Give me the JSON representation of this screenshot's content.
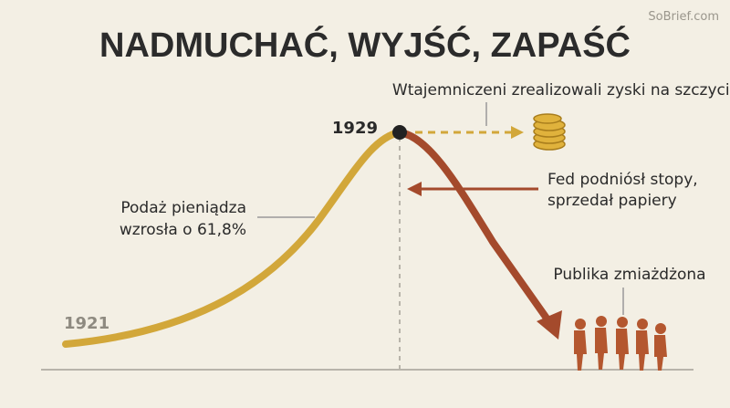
{
  "watermark": "SoBrief.com",
  "title": "NADMUCHAĆ, WYJŚĆ, ZAPAŚĆ",
  "annotations": {
    "insiders": "Wtajemniczeni zrealizowali zyski na szczycie",
    "peak_year": "1929",
    "start_year": "1921",
    "money_supply": [
      "Podaż pieniądza",
      "wzrosła o 61,8%"
    ],
    "fed": [
      "Fed podniósł stopy,",
      "sprzedał papiery"
    ],
    "public": "Publika zmiażdżona"
  }
}
